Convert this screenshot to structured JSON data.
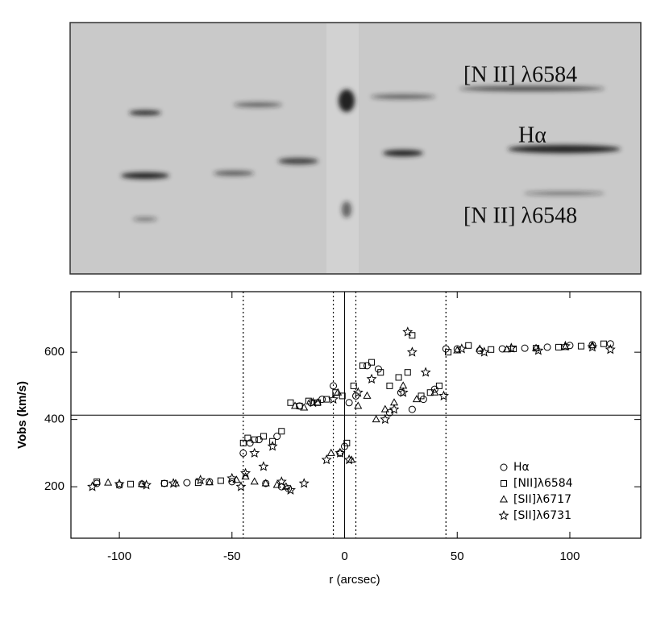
{
  "spectrum": {
    "labels": [
      "[N II] λ6584",
      "Hα",
      "[N II] λ6548"
    ]
  },
  "chart_data": {
    "type": "scatter",
    "x_label": "r (arcsec)",
    "y_label": "Vobs (km/s)",
    "xlim": [
      -121.5,
      131.5
    ],
    "ylim": [
      47,
      780
    ],
    "xticks": [
      -100,
      -50,
      0,
      50,
      100
    ],
    "yticks": [
      200,
      400,
      600
    ],
    "vlines": [
      {
        "x": -45,
        "style": "dotted"
      },
      {
        "x": -5,
        "style": "dotted"
      },
      {
        "x": 0,
        "style": "solid"
      },
      {
        "x": 5,
        "style": "dotted"
      },
      {
        "x": 45,
        "style": "dotted"
      }
    ],
    "hline": 413,
    "legend": "lower right",
    "series": [
      {
        "name": "Hα",
        "marker": "circle",
        "color": "#000000",
        "x": [
          -110,
          -100,
          -90,
          -80,
          -70,
          -60,
          -50,
          -45,
          -42,
          -38,
          -35,
          -30,
          -28,
          -25,
          -20,
          -15,
          -10,
          -5,
          -2,
          0,
          2,
          5,
          10,
          15,
          20,
          25,
          30,
          35,
          40,
          45,
          50,
          60,
          70,
          80,
          90,
          100,
          110,
          118
        ],
        "values": [
          210,
          205,
          208,
          210,
          212,
          215,
          215,
          300,
          330,
          340,
          210,
          350,
          200,
          195,
          440,
          450,
          460,
          500,
          300,
          320,
          450,
          470,
          560,
          550,
          420,
          480,
          430,
          460,
          490,
          610,
          610,
          605,
          610,
          612,
          615,
          620,
          622,
          625
        ]
      },
      {
        "name": "[NII]λ6584",
        "marker": "square",
        "color": "#000000",
        "x": [
          -110,
          -95,
          -80,
          -65,
          -55,
          -45,
          -43,
          -40,
          -36,
          -32,
          -28,
          -24,
          -20,
          -16,
          -12,
          -8,
          -4,
          -1,
          1,
          4,
          8,
          12,
          16,
          20,
          24,
          28,
          30,
          34,
          38,
          42,
          46,
          55,
          65,
          75,
          85,
          95,
          105,
          115
        ],
        "values": [
          215,
          208,
          210,
          212,
          218,
          330,
          345,
          340,
          350,
          335,
          365,
          450,
          440,
          455,
          450,
          460,
          480,
          470,
          330,
          500,
          560,
          570,
          540,
          500,
          525,
          540,
          650,
          470,
          480,
          500,
          600,
          620,
          608,
          610,
          612,
          615,
          618,
          625
        ]
      },
      {
        "name": "[SII]λ6717",
        "marker": "triangle",
        "color": "#000000",
        "x": [
          -105,
          -90,
          -75,
          -60,
          -48,
          -44,
          -40,
          -35,
          -30,
          -26,
          -22,
          -18,
          -12,
          -6,
          -3,
          3,
          6,
          10,
          14,
          18,
          22,
          26,
          32,
          40,
          50,
          60,
          72,
          85,
          98,
          110
        ],
        "values": [
          212,
          208,
          210,
          213,
          220,
          230,
          215,
          210,
          205,
          200,
          440,
          435,
          450,
          300,
          480,
          280,
          440,
          470,
          400,
          430,
          450,
          500,
          460,
          480,
          605,
          610,
          608,
          612,
          615,
          620
        ]
      },
      {
        "name": "[SII]λ6731",
        "marker": "star",
        "color": "#000000",
        "x": [
          -112,
          -100,
          -88,
          -76,
          -64,
          -50,
          -46,
          -44,
          -40,
          -36,
          -32,
          -28,
          -24,
          -18,
          -14,
          -8,
          -5,
          -2,
          2,
          6,
          12,
          18,
          22,
          26,
          28,
          30,
          36,
          44,
          52,
          62,
          74,
          86,
          98,
          110,
          118
        ],
        "values": [
          200,
          208,
          205,
          210,
          220,
          225,
          200,
          240,
          300,
          260,
          320,
          215,
          190,
          210,
          450,
          280,
          460,
          300,
          280,
          480,
          520,
          400,
          430,
          480,
          660,
          600,
          540,
          470,
          610,
          600,
          612,
          605,
          618,
          615,
          608
        ]
      }
    ]
  }
}
